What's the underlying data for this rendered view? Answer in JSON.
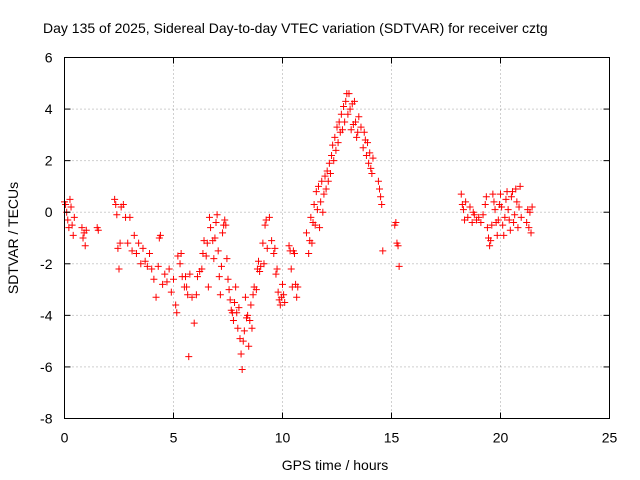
{
  "colors": {
    "series": "#ff0000",
    "axis": "#000000",
    "grid": "#a0a0a0",
    "background": "#ffffff"
  },
  "chart_data": {
    "type": "scatter",
    "title": "Day 135 of 2025, Sidereal Day-to-day VTEC variation (SDTVAR) for receiver cztg",
    "xlabel": "GPS time / hours",
    "ylabel": "SDTVAR / TECUs",
    "xlim": [
      0,
      25
    ],
    "ylim": [
      -8,
      6
    ],
    "xticks": [
      0,
      5,
      10,
      15,
      20,
      25
    ],
    "yticks": [
      -8,
      -6,
      -4,
      -2,
      0,
      2,
      4,
      6
    ],
    "grid": true,
    "marker": "+",
    "series": [
      {
        "name": "SDTVAR",
        "points": [
          [
            0.0,
            0.4
          ],
          [
            0.05,
            0.3
          ],
          [
            0.1,
            0.0
          ],
          [
            0.15,
            -0.3
          ],
          [
            0.2,
            -0.6
          ],
          [
            0.25,
            0.5
          ],
          [
            0.3,
            0.2
          ],
          [
            0.35,
            -0.5
          ],
          [
            0.4,
            -0.9
          ],
          [
            0.45,
            -0.2
          ],
          [
            0.8,
            -0.6
          ],
          [
            0.85,
            -1.0
          ],
          [
            0.9,
            -0.8
          ],
          [
            0.95,
            -1.3
          ],
          [
            1.0,
            -0.7
          ],
          [
            1.5,
            -0.6
          ],
          [
            1.55,
            -0.7
          ],
          [
            2.3,
            0.5
          ],
          [
            2.35,
            0.3
          ],
          [
            2.4,
            -0.1
          ],
          [
            2.45,
            -1.4
          ],
          [
            2.5,
            -2.2
          ],
          [
            2.55,
            -1.2
          ],
          [
            2.6,
            0.2
          ],
          [
            2.7,
            0.3
          ],
          [
            2.8,
            -0.2
          ],
          [
            2.9,
            -1.2
          ],
          [
            3.0,
            -0.2
          ],
          [
            3.1,
            -1.5
          ],
          [
            3.2,
            -0.9
          ],
          [
            3.3,
            -1.6
          ],
          [
            3.4,
            -1.2
          ],
          [
            3.5,
            -2.0
          ],
          [
            3.6,
            -1.4
          ],
          [
            3.7,
            -1.9
          ],
          [
            3.8,
            -2.1
          ],
          [
            3.9,
            -1.6
          ],
          [
            4.0,
            -2.2
          ],
          [
            4.1,
            -2.6
          ],
          [
            4.2,
            -3.3
          ],
          [
            4.3,
            -2.1
          ],
          [
            4.35,
            -1.0
          ],
          [
            4.4,
            -0.9
          ],
          [
            4.5,
            -2.8
          ],
          [
            4.6,
            -2.4
          ],
          [
            4.7,
            -2.7
          ],
          [
            4.8,
            -2.2
          ],
          [
            4.9,
            -3.1
          ],
          [
            5.0,
            -2.6
          ],
          [
            5.1,
            -3.6
          ],
          [
            5.15,
            -3.9
          ],
          [
            5.2,
            -1.7
          ],
          [
            5.3,
            -2.0
          ],
          [
            5.35,
            -1.6
          ],
          [
            5.4,
            -2.5
          ],
          [
            5.5,
            -2.9
          ],
          [
            5.55,
            -2.5
          ],
          [
            5.6,
            -2.9
          ],
          [
            5.65,
            -3.2
          ],
          [
            5.7,
            -5.6
          ],
          [
            5.75,
            -2.4
          ],
          [
            5.85,
            -3.3
          ],
          [
            5.95,
            -4.3
          ],
          [
            6.05,
            -3.2
          ],
          [
            6.1,
            -2.5
          ],
          [
            6.2,
            -2.3
          ],
          [
            6.3,
            -2.2
          ],
          [
            6.35,
            -1.6
          ],
          [
            6.4,
            -1.1
          ],
          [
            6.5,
            -1.7
          ],
          [
            6.55,
            -1.2
          ],
          [
            6.6,
            -2.9
          ],
          [
            6.65,
            -0.2
          ],
          [
            6.7,
            -0.6
          ],
          [
            6.8,
            -1.1
          ],
          [
            6.85,
            -1.8
          ],
          [
            6.9,
            -1.0
          ],
          [
            6.95,
            -0.4
          ],
          [
            7.0,
            -0.1
          ],
          [
            7.05,
            -1.5
          ],
          [
            7.1,
            -2.5
          ],
          [
            7.15,
            -3.2
          ],
          [
            7.2,
            -2.1
          ],
          [
            7.25,
            -0.8
          ],
          [
            7.3,
            -0.5
          ],
          [
            7.35,
            -0.3
          ],
          [
            7.4,
            -0.5
          ],
          [
            7.45,
            -1.8
          ],
          [
            7.5,
            -2.6
          ],
          [
            7.55,
            -3.0
          ],
          [
            7.6,
            -3.4
          ],
          [
            7.65,
            -3.8
          ],
          [
            7.7,
            -3.9
          ],
          [
            7.75,
            -4.2
          ],
          [
            7.8,
            -3.5
          ],
          [
            7.85,
            -2.9
          ],
          [
            7.9,
            -3.9
          ],
          [
            7.95,
            -4.5
          ],
          [
            8.0,
            -3.7
          ],
          [
            8.05,
            -4.9
          ],
          [
            8.1,
            -5.5
          ],
          [
            8.15,
            -6.1
          ],
          [
            8.2,
            -5.0
          ],
          [
            8.25,
            -4.6
          ],
          [
            8.3,
            -3.3
          ],
          [
            8.35,
            -4.1
          ],
          [
            8.4,
            -4.0
          ],
          [
            8.45,
            -5.2
          ],
          [
            8.5,
            -4.2
          ],
          [
            8.55,
            -3.6
          ],
          [
            8.6,
            -4.5
          ],
          [
            8.65,
            -3.2
          ],
          [
            8.7,
            -2.9
          ],
          [
            8.8,
            -3.0
          ],
          [
            8.85,
            -2.2
          ],
          [
            8.9,
            -1.9
          ],
          [
            8.95,
            -2.3
          ],
          [
            9.0,
            -2.1
          ],
          [
            9.1,
            -1.2
          ],
          [
            9.15,
            -2.0
          ],
          [
            9.2,
            -0.5
          ],
          [
            9.25,
            -0.3
          ],
          [
            9.3,
            -1.4
          ],
          [
            9.4,
            -0.2
          ],
          [
            9.5,
            -1.1
          ],
          [
            9.6,
            -1.6
          ],
          [
            9.65,
            -1.4
          ],
          [
            9.7,
            -2.4
          ],
          [
            9.75,
            -2.2
          ],
          [
            9.8,
            -3.1
          ],
          [
            9.85,
            -3.4
          ],
          [
            9.9,
            -3.6
          ],
          [
            9.95,
            -3.3
          ],
          [
            10.0,
            -2.8
          ],
          [
            10.05,
            -3.2
          ],
          [
            10.1,
            -3.5
          ],
          [
            10.3,
            -1.3
          ],
          [
            10.35,
            -1.5
          ],
          [
            10.4,
            -2.2
          ],
          [
            10.45,
            -2.9
          ],
          [
            10.5,
            -1.5
          ],
          [
            10.55,
            -1.6
          ],
          [
            10.6,
            -2.8
          ],
          [
            10.65,
            -3.3
          ],
          [
            10.7,
            -2.9
          ],
          [
            11.1,
            -0.8
          ],
          [
            11.2,
            -1.6
          ],
          [
            11.25,
            -1.1
          ],
          [
            11.3,
            -0.2
          ],
          [
            11.35,
            -1.2
          ],
          [
            11.4,
            -0.4
          ],
          [
            11.45,
            0.3
          ],
          [
            11.5,
            -0.5
          ],
          [
            11.55,
            0.8
          ],
          [
            11.6,
            0.1
          ],
          [
            11.65,
            1.0
          ],
          [
            11.7,
            -0.6
          ],
          [
            11.75,
            0.4
          ],
          [
            11.8,
            1.2
          ],
          [
            11.85,
            0.0
          ],
          [
            11.9,
            0.7
          ],
          [
            11.95,
            1.4
          ],
          [
            12.0,
            0.9
          ],
          [
            12.05,
            1.6
          ],
          [
            12.1,
            1.2
          ],
          [
            12.15,
            1.9
          ],
          [
            12.2,
            1.5
          ],
          [
            12.25,
            2.2
          ],
          [
            12.3,
            2.6
          ],
          [
            12.35,
            2.0
          ],
          [
            12.4,
            2.9
          ],
          [
            12.45,
            2.4
          ],
          [
            12.5,
            3.3
          ],
          [
            12.55,
            2.7
          ],
          [
            12.6,
            3.5
          ],
          [
            12.65,
            3.1
          ],
          [
            12.7,
            3.8
          ],
          [
            12.75,
            3.2
          ],
          [
            12.8,
            4.1
          ],
          [
            12.85,
            3.5
          ],
          [
            12.9,
            4.3
          ],
          [
            12.95,
            4.6
          ],
          [
            13.0,
            3.8
          ],
          [
            13.05,
            4.6
          ],
          [
            13.1,
            4.0
          ],
          [
            13.15,
            3.2
          ],
          [
            13.2,
            4.2
          ],
          [
            13.25,
            3.4
          ],
          [
            13.3,
            4.3
          ],
          [
            13.35,
            3.5
          ],
          [
            13.4,
            2.9
          ],
          [
            13.45,
            3.1
          ],
          [
            13.5,
            3.7
          ],
          [
            13.6,
            3.3
          ],
          [
            13.7,
            2.5
          ],
          [
            13.75,
            3.1
          ],
          [
            13.8,
            2.8
          ],
          [
            13.85,
            2.2
          ],
          [
            13.9,
            2.7
          ],
          [
            13.95,
            1.9
          ],
          [
            14.0,
            2.3
          ],
          [
            14.05,
            1.7
          ],
          [
            14.1,
            1.5
          ],
          [
            14.15,
            2.1
          ],
          [
            14.4,
            1.2
          ],
          [
            14.45,
            0.9
          ],
          [
            14.5,
            0.6
          ],
          [
            14.55,
            0.3
          ],
          [
            14.6,
            -1.5
          ],
          [
            15.15,
            -0.5
          ],
          [
            15.2,
            -0.4
          ],
          [
            15.25,
            -1.2
          ],
          [
            15.3,
            -1.3
          ],
          [
            15.35,
            -2.1
          ],
          [
            18.2,
            0.7
          ],
          [
            18.25,
            0.3
          ],
          [
            18.3,
            0.1
          ],
          [
            18.35,
            -0.3
          ],
          [
            18.4,
            0.4
          ],
          [
            18.5,
            -0.2
          ],
          [
            18.6,
            0.2
          ],
          [
            18.7,
            -0.4
          ],
          [
            18.75,
            0.0
          ],
          [
            18.8,
            -0.1
          ],
          [
            18.9,
            -0.3
          ],
          [
            19.0,
            -0.2
          ],
          [
            19.1,
            -0.4
          ],
          [
            19.2,
            -0.1
          ],
          [
            19.3,
            0.3
          ],
          [
            19.35,
            0.6
          ],
          [
            19.4,
            -0.6
          ],
          [
            19.45,
            -1.0
          ],
          [
            19.5,
            -1.3
          ],
          [
            19.55,
            -1.1
          ],
          [
            19.6,
            -0.5
          ],
          [
            19.65,
            0.7
          ],
          [
            19.7,
            0.4
          ],
          [
            19.75,
            0.1
          ],
          [
            19.8,
            -0.4
          ],
          [
            19.85,
            -0.9
          ],
          [
            19.9,
            -0.3
          ],
          [
            19.95,
            0.3
          ],
          [
            20.0,
            0.7
          ],
          [
            20.05,
            0.2
          ],
          [
            20.1,
            -0.5
          ],
          [
            20.15,
            -0.9
          ],
          [
            20.2,
            -0.2
          ],
          [
            20.25,
            0.5
          ],
          [
            20.3,
            0.8
          ],
          [
            20.35,
            0.1
          ],
          [
            20.4,
            -0.3
          ],
          [
            20.45,
            -0.7
          ],
          [
            20.5,
            0.6
          ],
          [
            20.55,
            0.8
          ],
          [
            20.6,
            -0.4
          ],
          [
            20.65,
            -0.1
          ],
          [
            20.7,
            0.9
          ],
          [
            20.75,
            0.4
          ],
          [
            20.8,
            -0.6
          ],
          [
            20.85,
            0.2
          ],
          [
            20.9,
            1.0
          ],
          [
            20.95,
            -0.2
          ],
          [
            21.2,
            -0.4
          ],
          [
            21.25,
            0.1
          ],
          [
            21.3,
            -0.6
          ],
          [
            21.35,
            0.0
          ],
          [
            21.4,
            -0.8
          ],
          [
            21.45,
            0.2
          ]
        ]
      }
    ]
  }
}
